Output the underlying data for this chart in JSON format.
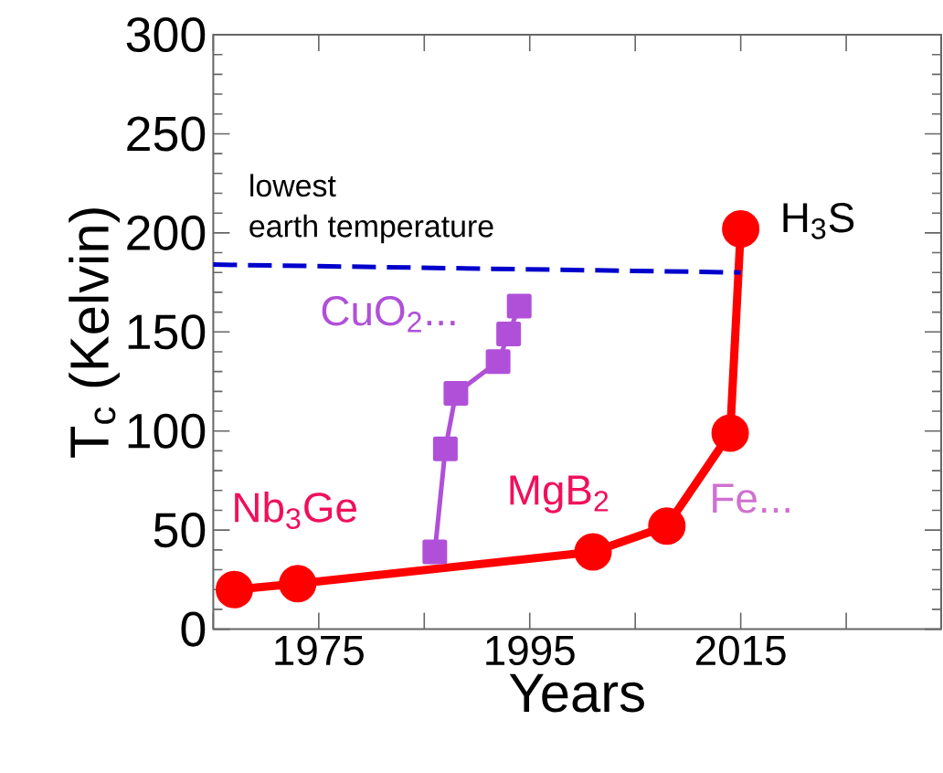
{
  "chart_data": {
    "type": "line",
    "xlabel": "Years",
    "ylabel": "T$_{c}$ (Kelvin)",
    "xlim": [
      1965,
      2034
    ],
    "ylim": [
      0,
      300
    ],
    "xticks": [
      {
        "value": 1965,
        "label": null
      },
      1975,
      {
        "value": 1985,
        "label": null
      },
      1995,
      {
        "value": 2005,
        "label": null
      },
      2015,
      {
        "value": 2025,
        "label": null
      }
    ],
    "yticks": [
      0,
      50,
      100,
      150,
      200,
      250,
      300
    ],
    "grid": false,
    "series": [
      {
        "color": "#ff0000",
        "marker": "circle",
        "line_style": "solid",
        "x": [
          1967,
          1973,
          2001,
          2008,
          2014,
          2015
        ],
        "values": [
          20,
          23,
          39,
          52,
          99,
          202
        ]
      },
      {
        "color": "#b050d8",
        "marker": "square",
        "line_style": "solid",
        "x": [
          1986,
          1987,
          1988,
          1992,
          1993,
          1994
        ],
        "values": [
          39,
          91,
          119,
          135,
          149,
          163
        ]
      },
      {
        "color": "#0000cc",
        "marker": "none",
        "line_style": "dashed",
        "x": [
          1965,
          2015
        ],
        "values": [
          184,
          180
        ]
      }
    ],
    "annotations": [
      "lowest",
      "earth temperature",
      "Nb$_{3}$Ge",
      "MgB$_{2}$",
      "Fe...",
      "CuO$_{2}$...",
      "H$_{3}$S"
    ]
  }
}
